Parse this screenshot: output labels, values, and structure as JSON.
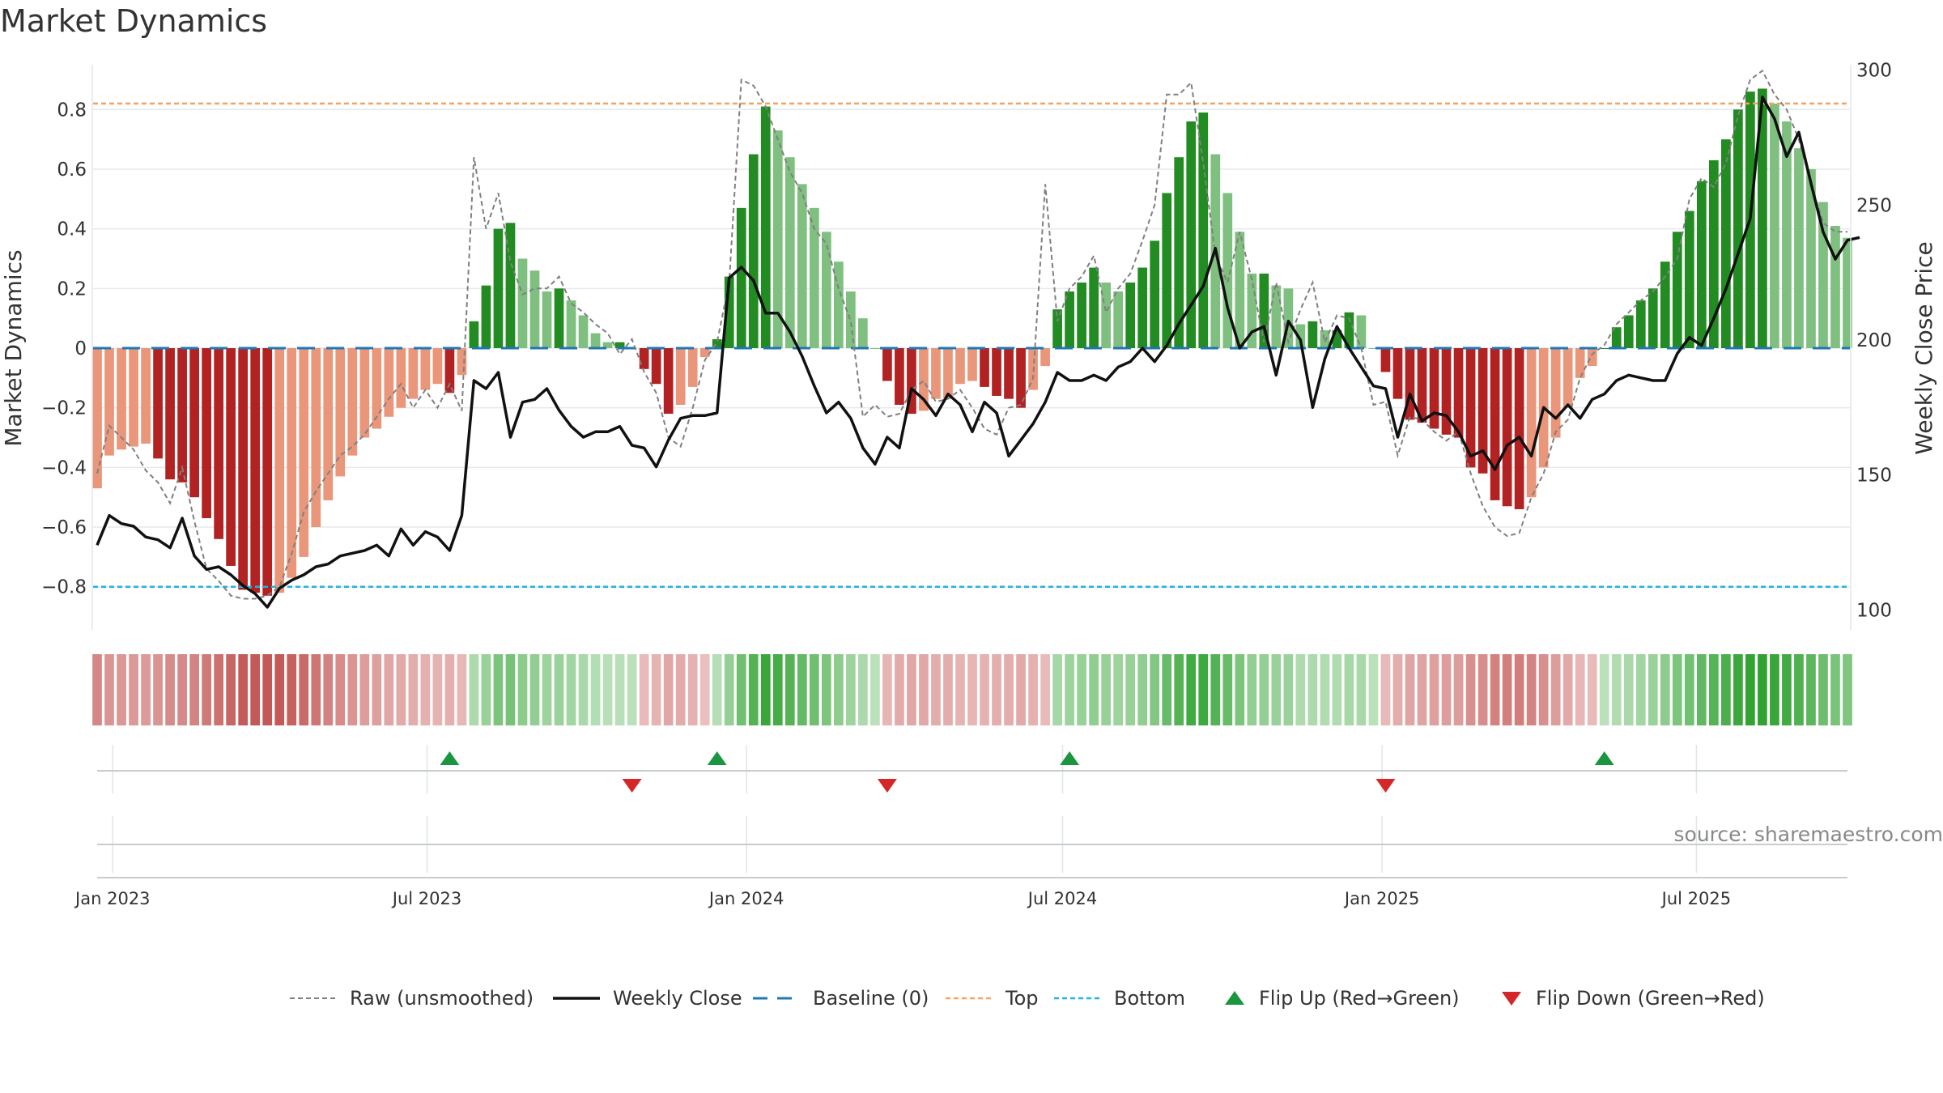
{
  "title": "Market Dynamics",
  "source": "source: sharemaestro.com",
  "colors": {
    "green_strong": "#228b22",
    "green_light": "#7fbf7f",
    "red_strong": "#b22222",
    "red_light": "#e9967a",
    "top": "#f4a460",
    "bottom": "#1eb3e0",
    "baseline": "#1f77b4",
    "raw": "#808080",
    "close": "#111111",
    "flip_up": "#1a9641",
    "flip_down": "#d62728"
  },
  "chart_data": {
    "type": "bar",
    "title": "Market Dynamics",
    "ylabel_left": "Market Dynamics",
    "ylabel_right": "Weekly Close Price",
    "ylim_left": [
      -0.95,
      0.95
    ],
    "ylim_right": [
      92,
      302
    ],
    "yticks_left": [
      0.8,
      0.6,
      0.4,
      0.2,
      0,
      -0.2,
      -0.4,
      -0.6,
      -0.8
    ],
    "yticks_left_labels": [
      "0.8",
      "0.6",
      "0.4",
      "0.2",
      "0",
      "−0.2",
      "−0.4",
      "−0.6",
      "−0.8"
    ],
    "yticks_right": [
      300,
      250,
      200,
      150,
      100
    ],
    "top_level": 0.82,
    "bottom_level": -0.8,
    "baseline": 0,
    "start_date": "2022-12-23",
    "week_interval_days": 7,
    "x_ticks": [
      {
        "date": "2023-01-01",
        "label": "Jan 2023"
      },
      {
        "date": "2023-07-01",
        "label": "Jul 2023"
      },
      {
        "date": "2024-01-01",
        "label": "Jan 2024"
      },
      {
        "date": "2024-07-01",
        "label": "Jul 2024"
      },
      {
        "date": "2025-01-01",
        "label": "Jan 2025"
      },
      {
        "date": "2025-07-01",
        "label": "Jul 2025"
      }
    ],
    "series": [
      {
        "name": "Market Dynamics",
        "values": [
          -0.47,
          -0.36,
          -0.34,
          -0.33,
          -0.32,
          -0.37,
          -0.44,
          -0.45,
          -0.5,
          -0.57,
          -0.64,
          -0.73,
          -0.81,
          -0.82,
          -0.83,
          -0.82,
          -0.77,
          -0.7,
          -0.6,
          -0.51,
          -0.43,
          -0.36,
          -0.3,
          -0.27,
          -0.23,
          -0.2,
          -0.17,
          -0.14,
          -0.12,
          -0.15,
          -0.09,
          0.09,
          0.21,
          0.4,
          0.42,
          0.3,
          0.26,
          0.19,
          0.2,
          0.16,
          0.11,
          0.05,
          0.02,
          0.02,
          0.0,
          -0.07,
          -0.12,
          -0.22,
          -0.19,
          -0.13,
          -0.03,
          0.03,
          0.24,
          0.47,
          0.65,
          0.81,
          0.73,
          0.64,
          0.55,
          0.47,
          0.39,
          0.29,
          0.19,
          0.1,
          0.0,
          -0.11,
          -0.19,
          -0.22,
          -0.21,
          -0.17,
          -0.17,
          -0.12,
          -0.11,
          -0.13,
          -0.16,
          -0.17,
          -0.2,
          -0.14,
          -0.06,
          0.13,
          0.19,
          0.22,
          0.27,
          0.22,
          0.19,
          0.22,
          0.27,
          0.36,
          0.52,
          0.64,
          0.76,
          0.79,
          0.65,
          0.52,
          0.39,
          0.25,
          0.25,
          0.21,
          0.2,
          0.08,
          0.09,
          0.06,
          0.06,
          0.12,
          0.11,
          0.0,
          -0.08,
          -0.17,
          -0.24,
          -0.25,
          -0.27,
          -0.29,
          -0.3,
          -0.4,
          -0.42,
          -0.51,
          -0.53,
          -0.54,
          -0.5,
          -0.4,
          -0.3,
          -0.2,
          -0.1,
          -0.06,
          0.0,
          0.07,
          0.11,
          0.16,
          0.2,
          0.29,
          0.39,
          0.46,
          0.56,
          0.63,
          0.7,
          0.8,
          0.86,
          0.87,
          0.82,
          0.76,
          0.67,
          0.6,
          0.49,
          0.41,
          0.37
        ]
      },
      {
        "name": "Raw (unsmoothed)",
        "values": [
          -0.42,
          -0.26,
          -0.3,
          -0.34,
          -0.41,
          -0.45,
          -0.52,
          -0.4,
          -0.58,
          -0.74,
          -0.78,
          -0.83,
          -0.84,
          -0.84,
          -0.83,
          -0.8,
          -0.69,
          -0.55,
          -0.48,
          -0.42,
          -0.36,
          -0.33,
          -0.29,
          -0.23,
          -0.17,
          -0.12,
          -0.2,
          -0.14,
          -0.2,
          -0.12,
          -0.21,
          0.64,
          0.4,
          0.52,
          0.29,
          0.18,
          0.2,
          0.2,
          0.24,
          0.15,
          0.12,
          0.08,
          0.05,
          -0.02,
          0.03,
          -0.08,
          -0.15,
          -0.3,
          -0.33,
          -0.2,
          -0.04,
          0.02,
          0.22,
          0.9,
          0.88,
          0.81,
          0.7,
          0.59,
          0.52,
          0.4,
          0.35,
          0.2,
          0.09,
          -0.23,
          -0.19,
          -0.23,
          -0.22,
          -0.14,
          -0.11,
          -0.18,
          -0.17,
          -0.14,
          -0.2,
          -0.27,
          -0.29,
          -0.2,
          -0.19,
          -0.1,
          0.55,
          0.09,
          0.2,
          0.24,
          0.31,
          0.12,
          0.2,
          0.25,
          0.36,
          0.48,
          0.85,
          0.85,
          0.89,
          0.62,
          0.31,
          0.22,
          0.39,
          0.23,
          0.02,
          0.22,
          0.02,
          0.13,
          0.22,
          0.02,
          0.11,
          0.1,
          0.0,
          -0.19,
          -0.18,
          -0.36,
          -0.23,
          -0.24,
          -0.28,
          -0.31,
          -0.28,
          -0.42,
          -0.53,
          -0.6,
          -0.63,
          -0.62,
          -0.5,
          -0.42,
          -0.28,
          -0.24,
          -0.1,
          -0.02,
          0.01,
          0.08,
          0.12,
          0.16,
          0.19,
          0.24,
          0.3,
          0.5,
          0.57,
          0.54,
          0.62,
          0.78,
          0.9,
          0.93,
          0.85,
          0.8,
          0.7,
          0.55,
          0.42,
          0.39,
          0.39
        ]
      },
      {
        "name": "Weekly Close",
        "values": [
          124,
          135,
          132,
          131,
          127,
          126,
          123,
          134,
          120,
          115,
          116,
          113,
          109,
          106,
          101,
          108,
          111,
          113,
          116,
          117,
          120,
          121,
          122,
          124,
          120,
          130,
          124,
          129,
          127,
          122,
          135,
          185,
          182,
          188,
          164,
          177,
          178,
          182,
          174,
          168,
          164,
          166,
          166,
          168,
          161,
          160,
          153,
          163,
          171,
          172,
          172,
          173,
          223,
          227,
          222,
          210,
          210,
          203,
          194,
          183,
          173,
          177,
          171,
          160,
          154,
          164,
          160,
          182,
          178,
          172,
          180,
          176,
          166,
          177,
          173,
          157,
          163,
          169,
          177,
          188,
          185,
          185,
          187,
          185,
          190,
          192,
          197,
          192,
          198,
          206,
          213,
          220,
          234,
          212,
          197,
          203,
          205,
          187,
          207,
          200,
          175,
          193,
          205,
          197,
          190,
          183,
          182,
          164,
          180,
          170,
          173,
          172,
          166,
          157,
          159,
          152,
          161,
          164,
          157,
          175,
          171,
          176,
          171,
          178,
          180,
          185,
          187,
          186,
          185,
          185,
          195,
          201,
          198,
          208,
          219,
          232,
          245,
          290,
          282,
          268,
          277,
          258,
          240,
          230,
          237,
          238
        ]
      }
    ],
    "flip_up_dates": [
      "2023-07-14",
      "2023-12-15",
      "2024-07-05",
      "2025-05-09"
    ],
    "flip_down_dates": [
      "2023-10-27",
      "2024-03-22",
      "2025-01-03"
    ],
    "legend": [
      {
        "label": "Raw (unsmoothed)",
        "kind": "raw"
      },
      {
        "label": "Weekly Close",
        "kind": "close"
      },
      {
        "label": "Baseline (0)",
        "kind": "baseline"
      },
      {
        "label": "Top",
        "kind": "top"
      },
      {
        "label": "Bottom",
        "kind": "bottom"
      },
      {
        "label": "Flip Up (Red→Green)",
        "kind": "flip-up"
      },
      {
        "label": "Flip Down (Green→Red)",
        "kind": "flip-down"
      }
    ],
    "legend_position": "bottom-center",
    "grid": true
  }
}
